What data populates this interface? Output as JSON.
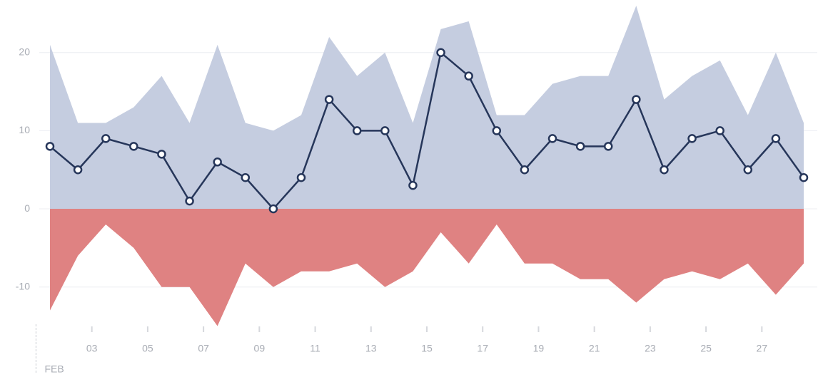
{
  "chart_data": {
    "type": "area-line",
    "x": [
      1,
      2,
      3,
      4,
      5,
      6,
      7,
      8,
      9,
      10,
      11,
      12,
      13,
      14,
      15,
      16,
      17,
      18,
      19,
      20,
      21,
      22,
      23,
      24,
      25,
      26,
      27,
      28
    ],
    "series": [
      {
        "style": "area",
        "color": "#c5cde0",
        "values": [
          21,
          11,
          11,
          13,
          17,
          11,
          21,
          11,
          10,
          12,
          22,
          17,
          20,
          11,
          23,
          24,
          12,
          12,
          16,
          17,
          17,
          26,
          14,
          17,
          19,
          12,
          20,
          11
        ]
      },
      {
        "style": "area",
        "color": "#df8282",
        "values": [
          -13,
          -6,
          -2,
          -5,
          -10,
          -10,
          -15,
          -7,
          -10,
          -8,
          -8,
          -7,
          -10,
          -8,
          -3,
          -7,
          -2,
          -7,
          -7,
          -9,
          -9,
          -12,
          -9,
          -8,
          -9,
          -7,
          -11,
          -7
        ]
      },
      {
        "style": "line",
        "color": "#26365a",
        "values": [
          8,
          5,
          9,
          8,
          7,
          1,
          6,
          4,
          0,
          4,
          14,
          10,
          10,
          3,
          20,
          17,
          10,
          5,
          9,
          8,
          8,
          14,
          5,
          9,
          10,
          5,
          9,
          4
        ]
      }
    ],
    "xlim": [
      1,
      28
    ],
    "xticks": [
      {
        "value": 3,
        "label": "03"
      },
      {
        "value": 5,
        "label": "05"
      },
      {
        "value": 7,
        "label": "07"
      },
      {
        "value": 9,
        "label": "09"
      },
      {
        "value": 11,
        "label": "11"
      },
      {
        "value": 13,
        "label": "13"
      },
      {
        "value": 15,
        "label": "15"
      },
      {
        "value": 17,
        "label": "17"
      },
      {
        "value": 19,
        "label": "19"
      },
      {
        "value": 21,
        "label": "21"
      },
      {
        "value": 23,
        "label": "23"
      },
      {
        "value": 25,
        "label": "25"
      },
      {
        "value": 27,
        "label": "27"
      }
    ],
    "month_ticks": [
      {
        "value": 1,
        "label": "FEB"
      }
    ],
    "ylim": [
      -15.5,
      26
    ],
    "yticks": [
      -10,
      0,
      10,
      20
    ],
    "grid": true
  }
}
